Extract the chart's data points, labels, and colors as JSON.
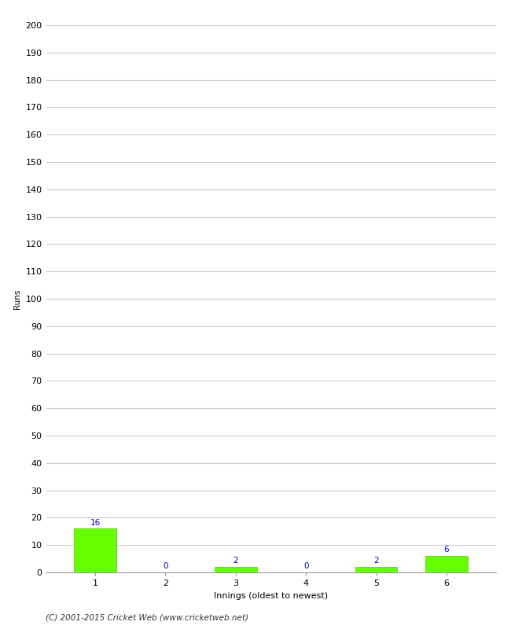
{
  "xlabel": "Innings (oldest to newest)",
  "ylabel": "Runs",
  "categories": [
    "1",
    "2",
    "3",
    "4",
    "5",
    "6"
  ],
  "values": [
    16,
    0,
    2,
    0,
    2,
    6
  ],
  "bar_color": "#66ff00",
  "bar_edge_color": "#55cc00",
  "label_color": "#0000cc",
  "ylim": [
    0,
    200
  ],
  "yticks": [
    0,
    10,
    20,
    30,
    40,
    50,
    60,
    70,
    80,
    90,
    100,
    110,
    120,
    130,
    140,
    150,
    160,
    170,
    180,
    190,
    200
  ],
  "background_color": "#ffffff",
  "grid_color": "#cccccc",
  "footer": "(C) 2001-2015 Cricket Web (www.cricketweb.net)",
  "label_fontsize": 7.5,
  "axis_fontsize": 8,
  "footer_fontsize": 7.5,
  "ylabel_fontsize": 7.5
}
